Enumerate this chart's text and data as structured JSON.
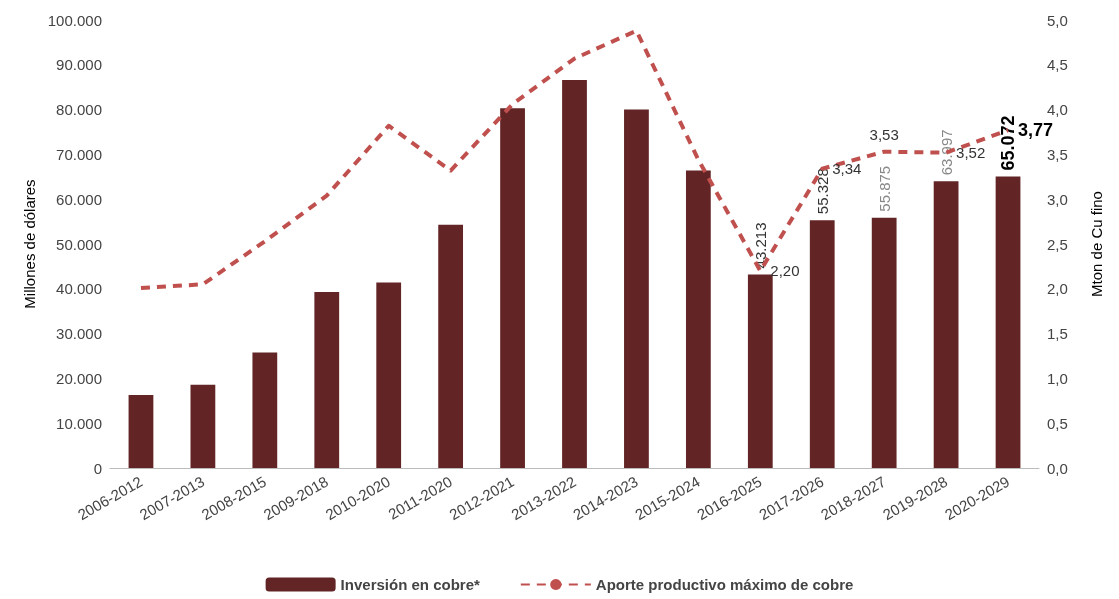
{
  "chart_data": {
    "type": "bar",
    "ylabel": "Millones de dólares",
    "y2label": "Mton de Cu fino",
    "categories": [
      "2006-2012",
      "2007-2013",
      "2008-2015",
      "2009-2018",
      "2010-2020",
      "2011-2020",
      "2012-2021",
      "2013-2022",
      "2014-2023",
      "2015-2024",
      "2016-2025",
      "2017-2026",
      "2018-2027",
      "2019-2028",
      "2020-2029"
    ],
    "series": [
      {
        "name": "Inversión en cobre*",
        "color": "#622424",
        "values": [
          16300,
          18600,
          25800,
          39300,
          41400,
          54300,
          80300,
          86600,
          80000,
          66400,
          43213,
          55328,
          55875,
          63997,
          65072
        ],
        "value_labels": [
          null,
          null,
          null,
          null,
          null,
          null,
          null,
          null,
          null,
          null,
          "43.213",
          "55.328",
          "55.875",
          "63.997",
          "65.072"
        ]
      },
      {
        "name": "Aporte productivo máximo de cobre",
        "type": "line",
        "axis": "y2",
        "color": "#c0504d",
        "line_style": "dashed",
        "values": [
          2.01,
          2.05,
          2.53,
          3.04,
          3.82,
          3.32,
          4.06,
          4.57,
          4.88,
          3.44,
          2.2,
          3.34,
          3.53,
          3.52,
          3.77
        ],
        "value_labels": [
          null,
          null,
          null,
          null,
          null,
          null,
          null,
          null,
          null,
          null,
          "2,20",
          "3,34",
          "3,53",
          "3,52",
          "3,77"
        ]
      }
    ],
    "ylim": [
      0,
      100000
    ],
    "yticks": [
      {
        "value": 0,
        "label": "0"
      },
      {
        "value": 10000,
        "label": "10.000"
      },
      {
        "value": 20000,
        "label": "20.000"
      },
      {
        "value": 30000,
        "label": "30.000"
      },
      {
        "value": 40000,
        "label": "40.000"
      },
      {
        "value": 50000,
        "label": "50.000"
      },
      {
        "value": 60000,
        "label": "60.000"
      },
      {
        "value": 70000,
        "label": "70.000"
      },
      {
        "value": 80000,
        "label": "80.000"
      },
      {
        "value": 90000,
        "label": "90.000"
      },
      {
        "value": 100000,
        "label": "100.000"
      }
    ],
    "y2lim": [
      0,
      5
    ],
    "y2ticks": [
      {
        "value": 0,
        "label": "0,0"
      },
      {
        "value": 0.5,
        "label": "0,5"
      },
      {
        "value": 1,
        "label": "1,0"
      },
      {
        "value": 1.5,
        "label": "1,5"
      },
      {
        "value": 2,
        "label": "2,0"
      },
      {
        "value": 2.5,
        "label": "2,5"
      },
      {
        "value": 3,
        "label": "3,0"
      },
      {
        "value": 3.5,
        "label": "3,5"
      },
      {
        "value": 4,
        "label": "4,0"
      },
      {
        "value": 4.5,
        "label": "4,5"
      },
      {
        "value": 5,
        "label": "5,0"
      }
    ],
    "grid": false,
    "legend": "bottom"
  }
}
